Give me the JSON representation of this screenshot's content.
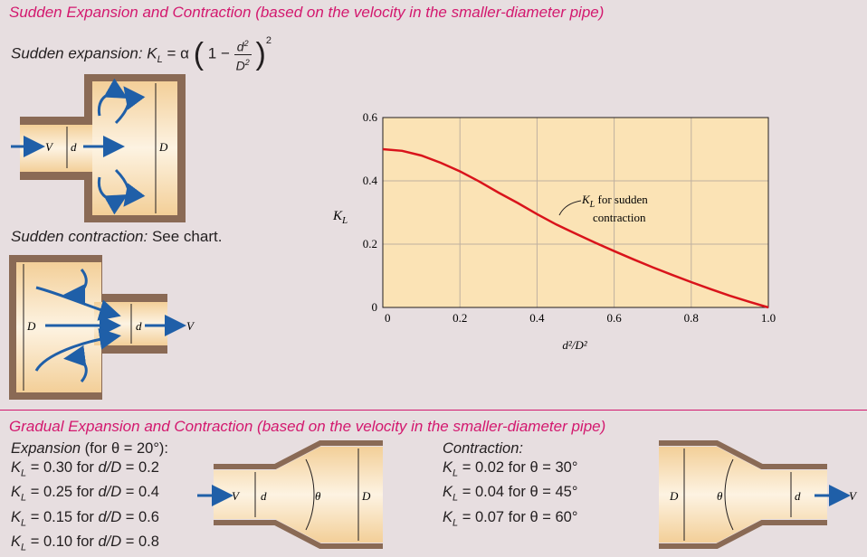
{
  "top_title": "Sudden Expansion and Contraction (based on the velocity in the smaller-diameter pipe)",
  "sudden_expansion": {
    "label": "Sudden expansion:",
    "kl": "K",
    "kl_sub": "L",
    "equals": "= α",
    "one_minus": "1 −",
    "num": "d",
    "den": "D",
    "sq": "2",
    "diagram": {
      "v": "V",
      "d": "d",
      "D": "D"
    }
  },
  "sudden_contraction": {
    "label": "Sudden contraction:",
    "note": "See chart.",
    "diagram": {
      "v": "V",
      "d": "d",
      "D": "D"
    }
  },
  "chart_data": {
    "type": "line",
    "xlabel": "d²/D²",
    "ylabel": "K",
    "ylabel_sub": "L",
    "xlim": [
      0,
      1.0
    ],
    "ylim": [
      0,
      0.6
    ],
    "xticks": [
      "0",
      "0.2",
      "0.4",
      "0.6",
      "0.8",
      "1.0"
    ],
    "yticks": [
      "0",
      "0.2",
      "0.4",
      "0.6"
    ],
    "grid": true,
    "annotation": {
      "line1": "K",
      "sub": "L",
      "line1_rest": " for sudden",
      "line2": "contraction"
    },
    "series": [
      {
        "x": [
          0,
          0.05,
          0.1,
          0.15,
          0.2,
          0.25,
          0.3,
          0.35,
          0.4,
          0.45,
          0.5,
          0.55,
          0.6,
          0.65,
          0.7,
          0.75,
          0.8,
          0.85,
          0.9,
          0.95,
          1.0
        ],
        "values": [
          0.5,
          0.495,
          0.48,
          0.457,
          0.43,
          0.398,
          0.363,
          0.33,
          0.295,
          0.262,
          0.233,
          0.205,
          0.178,
          0.152,
          0.127,
          0.103,
          0.08,
          0.058,
          0.037,
          0.018,
          0
        ]
      }
    ],
    "colors": {
      "line": "#d9141b",
      "plot_bg": "#fbe3b5",
      "grid": "#bfb0a0"
    }
  },
  "bottom_title": "Gradual Expansion and Contraction (based on the velocity in the smaller-diameter pipe)",
  "gradual_expansion": {
    "header_a": "Expansion",
    "header_b": " (for θ = 20°):",
    "rows": [
      {
        "k": "K",
        "sub": "L",
        "text": " = 0.30 for ",
        "r": "d/D",
        "val": " = 0.2"
      },
      {
        "k": "K",
        "sub": "L",
        "text": " = 0.25 for ",
        "r": "d/D",
        "val": " = 0.4"
      },
      {
        "k": "K",
        "sub": "L",
        "text": " = 0.15 for ",
        "r": "d/D",
        "val": " = 0.6"
      },
      {
        "k": "K",
        "sub": "L",
        "text": " = 0.10 for ",
        "r": "d/D",
        "val": " = 0.8"
      }
    ],
    "diagram": {
      "v": "V",
      "d": "d",
      "theta": "θ",
      "D": "D"
    }
  },
  "gradual_contraction": {
    "header": "Contraction:",
    "rows": [
      {
        "k": "K",
        "sub": "L",
        "text": " = 0.02 for θ = 30°"
      },
      {
        "k": "K",
        "sub": "L",
        "text": " = 0.04 for θ = 45°"
      },
      {
        "k": "K",
        "sub": "L",
        "text": " = 0.07 for θ = 60°"
      }
    ],
    "diagram": {
      "D": "D",
      "theta": "θ",
      "d": "d",
      "v": "V"
    }
  },
  "colors": {
    "accent": "#d3186e",
    "arrow": "#1f5fa8",
    "pipe_wall": "#8a6a55",
    "pipe_fill": "#f6d8a8"
  }
}
